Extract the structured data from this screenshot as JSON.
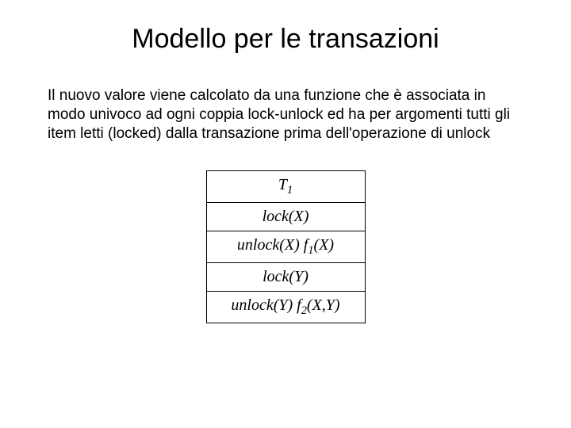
{
  "title": "Modello per le transazioni",
  "paragraph": "Il nuovo valore viene calcolato da una funzione che è associata in modo univoco ad ogni coppia lock-unlock ed ha per argomenti tutti gli item letti (locked) dalla transazione prima dell'operazione di unlock",
  "table": {
    "header_base": "T",
    "header_sub": "1",
    "row1": "lock(X)",
    "row2_prefix": "unlock(X) f",
    "row2_sub": "1",
    "row2_suffix": "(X)",
    "row3": "lock(Y)",
    "row4_prefix": "unlock(Y) f",
    "row4_sub": "2",
    "row4_suffix": "(X,Y)"
  },
  "colors": {
    "background": "#ffffff",
    "text": "#000000",
    "border": "#000000"
  },
  "fonts": {
    "title_size": 34,
    "body_size": 19,
    "table_size": 20,
    "title_family": "Arial",
    "table_family": "Times New Roman"
  }
}
